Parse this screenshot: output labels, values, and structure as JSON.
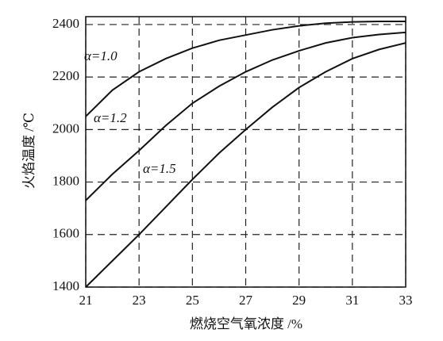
{
  "chart_data": {
    "type": "line",
    "x_label": "燃烧空气氧浓度 /%",
    "y_label": "火焰温度 /℃",
    "x": [
      21,
      22,
      23,
      24,
      25,
      26,
      27,
      28,
      29,
      30,
      31,
      32,
      33
    ],
    "series": [
      {
        "name": "α=1.0",
        "color": "#111111",
        "values": [
          2050,
          2150,
          2220,
          2270,
          2310,
          2340,
          2360,
          2380,
          2395,
          2405,
          2410,
          2412,
          2412
        ]
      },
      {
        "name": "α=1.2",
        "color": "#111111",
        "values": [
          1730,
          1830,
          1920,
          2015,
          2100,
          2165,
          2220,
          2265,
          2300,
          2330,
          2350,
          2362,
          2370
        ]
      },
      {
        "name": "α=1.5",
        "color": "#111111",
        "values": [
          1400,
          1500,
          1600,
          1705,
          1810,
          1910,
          2000,
          2085,
          2160,
          2220,
          2270,
          2305,
          2330
        ]
      }
    ],
    "xlim": [
      21,
      33
    ],
    "xticks": [
      21,
      23,
      25,
      27,
      29,
      31,
      33
    ],
    "ylim": [
      1400,
      2430
    ],
    "yticks": [
      1400,
      1600,
      1800,
      2000,
      2200,
      2400
    ],
    "grid": true
  }
}
